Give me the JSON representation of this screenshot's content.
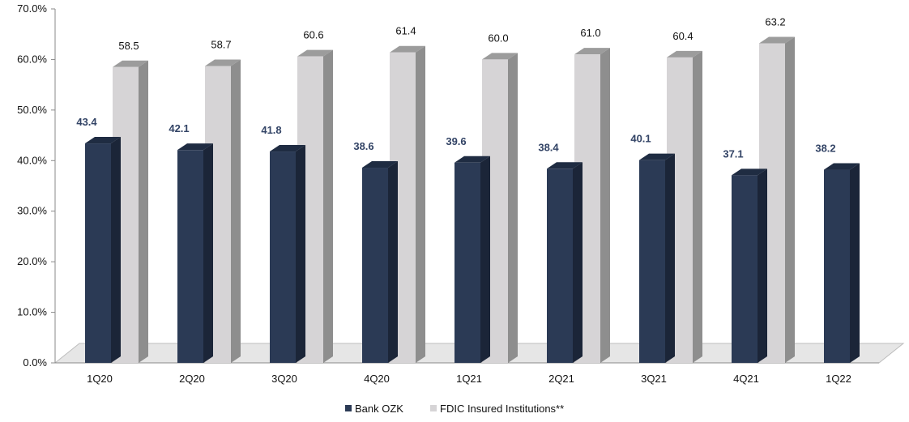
{
  "chart_data": {
    "type": "bar",
    "categories": [
      "1Q20",
      "2Q20",
      "3Q20",
      "4Q20",
      "1Q21",
      "2Q21",
      "3Q21",
      "4Q21",
      "1Q22"
    ],
    "series": [
      {
        "name": "Bank OZK",
        "values": [
          43.4,
          42.1,
          41.8,
          38.6,
          39.6,
          38.4,
          40.1,
          37.1,
          38.2
        ],
        "color": "#2b3a55"
      },
      {
        "name": "FDIC Insured Institutions**",
        "values": [
          58.5,
          58.7,
          60.6,
          61.4,
          60.0,
          61.0,
          60.4,
          63.2,
          null
        ],
        "color": "#d6d4d6"
      }
    ],
    "ylim": [
      0,
      70
    ],
    "yticks": [
      "0.0%",
      "10.0%",
      "20.0%",
      "30.0%",
      "40.0%",
      "50.0%",
      "60.0%",
      "70.0%"
    ],
    "legend_position": "bottom-center",
    "grid": false,
    "style": "3d-clustered-bar"
  }
}
